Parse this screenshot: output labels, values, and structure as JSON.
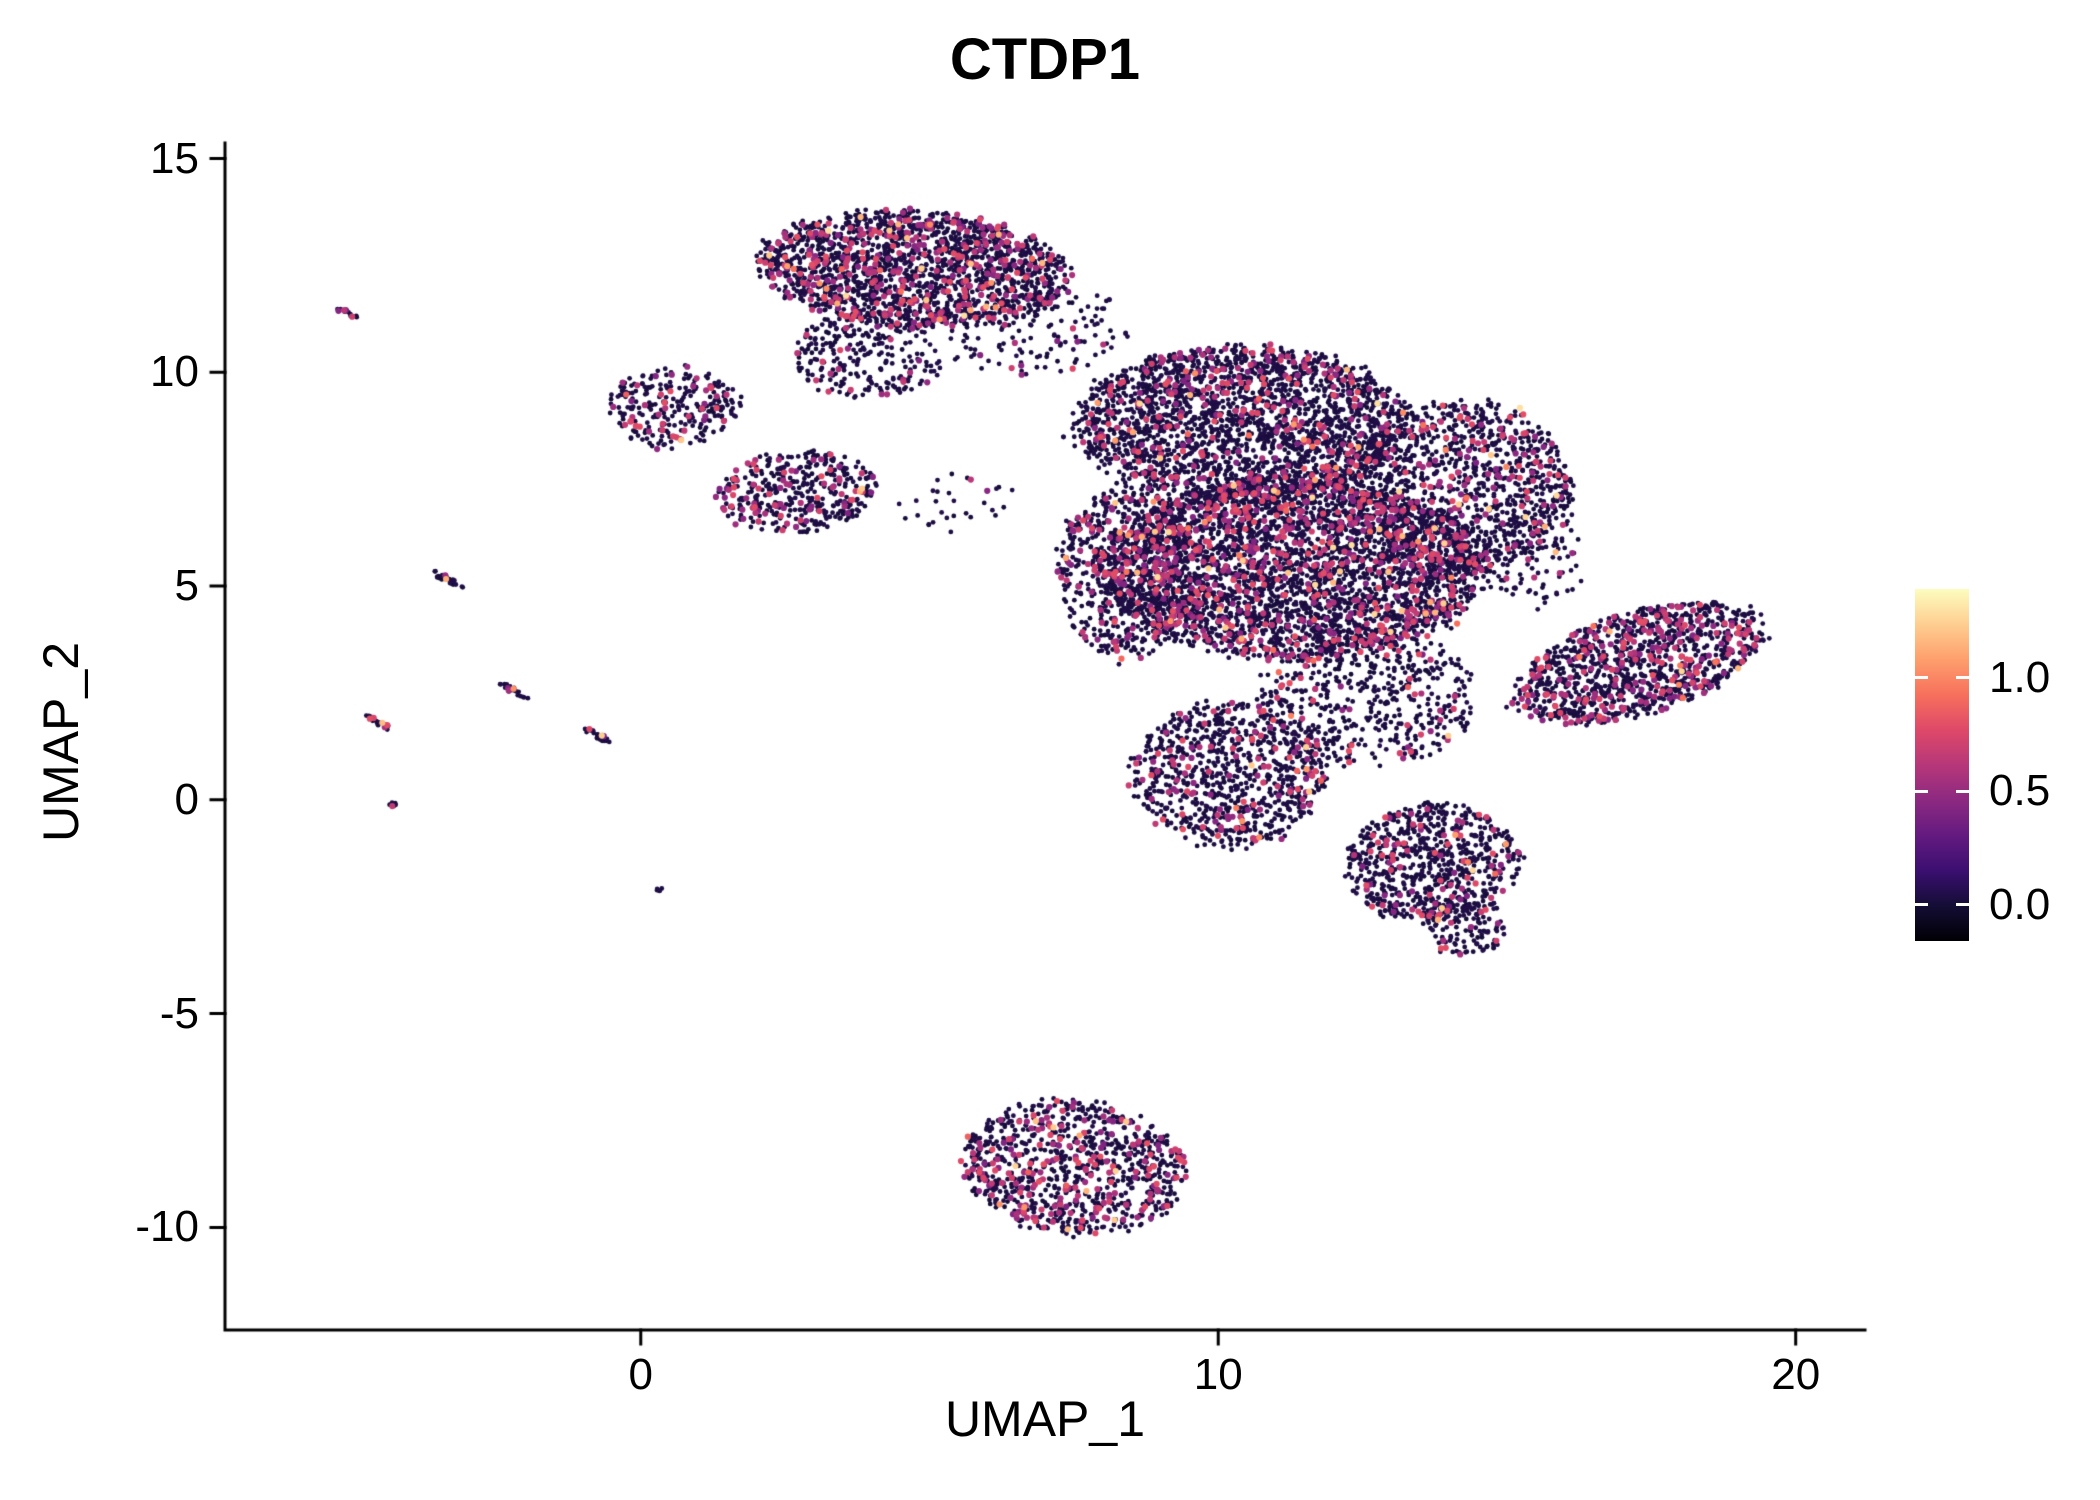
{
  "chart_data": {
    "type": "scatter",
    "title": "CTDP1",
    "xlabel": "UMAP_1",
    "ylabel": "UMAP_2",
    "xlim": [
      -7.2,
      21.2
    ],
    "ylim": [
      -12.4,
      15.2
    ],
    "x_ticks": [
      {
        "v": 0,
        "label": "0"
      },
      {
        "v": 10,
        "label": "10"
      },
      {
        "v": 20,
        "label": "20"
      }
    ],
    "y_ticks": [
      {
        "v": 15,
        "label": "15"
      },
      {
        "v": 10,
        "label": "10"
      },
      {
        "v": 5,
        "label": "5"
      },
      {
        "v": 0,
        "label": "0"
      },
      {
        "v": -5,
        "label": "-5"
      },
      {
        "v": -10,
        "label": "-10"
      }
    ],
    "grid": false,
    "legend_position": "right",
    "seed": 7,
    "point_radius_px": 2.4,
    "colormap": {
      "name": "magma",
      "stops": [
        [
          0.0,
          "#000004"
        ],
        [
          0.1,
          "#140d35"
        ],
        [
          0.2,
          "#3b0f70"
        ],
        [
          0.3,
          "#641a80"
        ],
        [
          0.4,
          "#8c2981"
        ],
        [
          0.5,
          "#b73779"
        ],
        [
          0.6,
          "#de4968"
        ],
        [
          0.7,
          "#f7705c"
        ],
        [
          0.8,
          "#fe9f6d"
        ],
        [
          0.9,
          "#fece91"
        ],
        [
          1.0,
          "#fcfdbf"
        ]
      ]
    },
    "colorbar": {
      "min": -0.16,
      "max": 1.39,
      "ticks": [
        {
          "v": 1.0,
          "label": "1.0"
        },
        {
          "v": 0.5,
          "label": "0.5"
        },
        {
          "v": 0.0,
          "label": "0.0"
        }
      ]
    },
    "clusters": [
      {
        "cx": 4.7,
        "cy": 12.4,
        "rx": 2.7,
        "ry": 1.35,
        "rot": -5,
        "n": 1900,
        "mid": 0.17,
        "high": 0.012
      },
      {
        "cx": 3.9,
        "cy": 10.4,
        "rx": 1.3,
        "ry": 1.0,
        "rot": 0,
        "n": 260,
        "mid": 0.1,
        "high": 0.004
      },
      {
        "cx": 6.9,
        "cy": 10.9,
        "rx": 1.6,
        "ry": 1.0,
        "rot": 10,
        "n": 130,
        "mid": 0.06,
        "high": 0.003
      },
      {
        "cx": 0.55,
        "cy": 9.2,
        "rx": 1.15,
        "ry": 0.95,
        "rot": 0,
        "n": 270,
        "mid": 0.13,
        "high": 0.012
      },
      {
        "cx": 2.7,
        "cy": 7.2,
        "rx": 1.35,
        "ry": 0.95,
        "rot": 10,
        "n": 400,
        "mid": 0.19,
        "high": 0.008
      },
      {
        "cx": 5.3,
        "cy": 7.0,
        "rx": 1.2,
        "ry": 0.7,
        "rot": 0,
        "n": 30,
        "mid": 0.08,
        "high": 0.0
      },
      {
        "cx": 10.4,
        "cy": 8.8,
        "rx": 2.9,
        "ry": 1.8,
        "rot": 0,
        "n": 2400,
        "mid": 0.11,
        "high": 0.012
      },
      {
        "cx": 11.3,
        "cy": 5.4,
        "rx": 3.3,
        "ry": 2.1,
        "rot": 0,
        "n": 3600,
        "mid": 0.15,
        "high": 0.012
      },
      {
        "cx": 14.2,
        "cy": 7.3,
        "rx": 1.9,
        "ry": 2.0,
        "rot": -15,
        "n": 1200,
        "mid": 0.11,
        "high": 0.01
      },
      {
        "cx": 8.4,
        "cy": 5.3,
        "rx": 1.2,
        "ry": 2.0,
        "rot": 0,
        "n": 650,
        "mid": 0.16,
        "high": 0.01
      },
      {
        "cx": 10.2,
        "cy": 0.6,
        "rx": 1.7,
        "ry": 1.7,
        "rot": 0,
        "n": 850,
        "mid": 0.13,
        "high": 0.01
      },
      {
        "cx": 12.6,
        "cy": 2.4,
        "rx": 1.9,
        "ry": 1.6,
        "rot": 0,
        "n": 520,
        "mid": 0.09,
        "high": 0.006
      },
      {
        "cx": 13.7,
        "cy": -1.5,
        "rx": 1.5,
        "ry": 1.4,
        "rot": 20,
        "n": 750,
        "mid": 0.11,
        "high": 0.01
      },
      {
        "cx": 14.3,
        "cy": -3.0,
        "rx": 0.7,
        "ry": 0.7,
        "rot": 0,
        "n": 120,
        "mid": 0.08,
        "high": 0.004
      },
      {
        "cx": 17.3,
        "cy": 3.2,
        "rx": 2.35,
        "ry": 1.15,
        "rot": 25,
        "n": 1150,
        "mid": 0.19,
        "high": 0.01
      },
      {
        "cx": 15.5,
        "cy": 5.6,
        "rx": 0.9,
        "ry": 1.1,
        "rot": 0,
        "n": 90,
        "mid": 0.1,
        "high": 0.005
      },
      {
        "cx": 7.5,
        "cy": -8.6,
        "rx": 1.95,
        "ry": 1.55,
        "rot": -15,
        "n": 950,
        "mid": 0.19,
        "high": 0.014
      },
      {
        "cx": -5.1,
        "cy": 11.4,
        "rx": 0.22,
        "ry": 0.05,
        "rot": -30,
        "n": 14,
        "mid": 0.1,
        "high": 0.0
      },
      {
        "cx": -3.35,
        "cy": 5.15,
        "rx": 0.35,
        "ry": 0.07,
        "rot": -35,
        "n": 26,
        "mid": 0.15,
        "high": 0.08
      },
      {
        "cx": -2.2,
        "cy": 2.55,
        "rx": 0.3,
        "ry": 0.07,
        "rot": -35,
        "n": 24,
        "mid": 0.12,
        "high": 0.04
      },
      {
        "cx": -4.55,
        "cy": 1.8,
        "rx": 0.3,
        "ry": 0.07,
        "rot": -35,
        "n": 22,
        "mid": 0.12,
        "high": 0.08
      },
      {
        "cx": -0.75,
        "cy": 1.5,
        "rx": 0.3,
        "ry": 0.07,
        "rot": -35,
        "n": 24,
        "mid": 0.12,
        "high": 0.06
      },
      {
        "cx": -4.3,
        "cy": -0.1,
        "rx": 0.12,
        "ry": 0.05,
        "rot": -30,
        "n": 8,
        "mid": 0.1,
        "high": 0.0
      },
      {
        "cx": 0.3,
        "cy": -2.1,
        "rx": 0.08,
        "ry": 0.05,
        "rot": 0,
        "n": 5,
        "mid": 0.0,
        "high": 0.0
      }
    ]
  }
}
